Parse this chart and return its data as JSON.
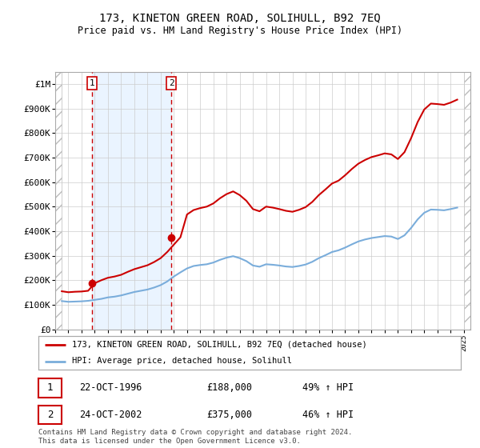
{
  "title": "173, KINETON GREEN ROAD, SOLIHULL, B92 7EQ",
  "subtitle": "Price paid vs. HM Land Registry's House Price Index (HPI)",
  "sale1_date": 1996.81,
  "sale1_price": 188000,
  "sale2_date": 2002.81,
  "sale2_price": 375000,
  "sale1_text": "22-OCT-1996",
  "sale1_amount": "£188,000",
  "sale1_hpi": "49% ↑ HPI",
  "sale2_text": "24-OCT-2002",
  "sale2_amount": "£375,000",
  "sale2_hpi": "46% ↑ HPI",
  "xlim": [
    1994.0,
    2025.5
  ],
  "ylim": [
    0,
    1050000
  ],
  "yticks": [
    0,
    100000,
    200000,
    300000,
    400000,
    500000,
    600000,
    700000,
    800000,
    900000,
    1000000
  ],
  "ytick_labels": [
    "£0",
    "£100K",
    "£200K",
    "£300K",
    "£400K",
    "£500K",
    "£600K",
    "£700K",
    "£800K",
    "£900K",
    "£1M"
  ],
  "legend_line1": "173, KINETON GREEN ROAD, SOLIHULL, B92 7EQ (detached house)",
  "legend_line2": "HPI: Average price, detached house, Solihull",
  "footer": "Contains HM Land Registry data © Crown copyright and database right 2024.\nThis data is licensed under the Open Government Licence v3.0.",
  "red_color": "#cc0000",
  "blue_color": "#7aaddb",
  "grid_color": "#cccccc",
  "shade_color": "#ddeeff",
  "hatch_left_end": 1994.5,
  "hatch_right_start": 2025.0,
  "years_hpi": [
    1994.5,
    1995.0,
    1995.5,
    1996.0,
    1996.5,
    1997.0,
    1997.5,
    1998.0,
    1998.5,
    1999.0,
    1999.5,
    2000.0,
    2000.5,
    2001.0,
    2001.5,
    2002.0,
    2002.5,
    2003.0,
    2003.5,
    2004.0,
    2004.5,
    2005.0,
    2005.5,
    2006.0,
    2006.5,
    2007.0,
    2007.5,
    2008.0,
    2008.5,
    2009.0,
    2009.5,
    2010.0,
    2010.5,
    2011.0,
    2011.5,
    2012.0,
    2012.5,
    2013.0,
    2013.5,
    2014.0,
    2014.5,
    2015.0,
    2015.5,
    2016.0,
    2016.5,
    2017.0,
    2017.5,
    2018.0,
    2018.5,
    2019.0,
    2019.5,
    2020.0,
    2020.5,
    2021.0,
    2021.5,
    2022.0,
    2022.5,
    2023.0,
    2023.5,
    2024.0,
    2024.5
  ],
  "hpi_values": [
    115000,
    112000,
    113000,
    114000,
    116000,
    120000,
    124000,
    130000,
    133000,
    138000,
    145000,
    152000,
    157000,
    162000,
    170000,
    180000,
    195000,
    215000,
    232000,
    248000,
    258000,
    262000,
    265000,
    272000,
    283000,
    292000,
    298000,
    290000,
    278000,
    260000,
    255000,
    265000,
    263000,
    260000,
    256000,
    254000,
    258000,
    264000,
    275000,
    290000,
    302000,
    315000,
    322000,
    333000,
    346000,
    358000,
    366000,
    372000,
    376000,
    380000,
    378000,
    368000,
    383000,
    413000,
    448000,
    475000,
    488000,
    487000,
    485000,
    490000,
    496000
  ],
  "red_values": [
    155000,
    151000,
    153000,
    154000,
    157000,
    188000,
    200000,
    210000,
    215000,
    222000,
    234000,
    245000,
    253000,
    261000,
    274000,
    290000,
    315000,
    345000,
    375000,
    468000,
    486000,
    494000,
    500000,
    513000,
    534000,
    551000,
    562000,
    547000,
    524000,
    490000,
    481000,
    500000,
    496000,
    490000,
    483000,
    479000,
    487000,
    498000,
    519000,
    547000,
    570000,
    594000,
    606000,
    628000,
    653000,
    675000,
    690000,
    702000,
    709000,
    717000,
    713000,
    694000,
    722000,
    779000,
    845000,
    896000,
    920000,
    918000,
    915000,
    924000,
    936000
  ]
}
